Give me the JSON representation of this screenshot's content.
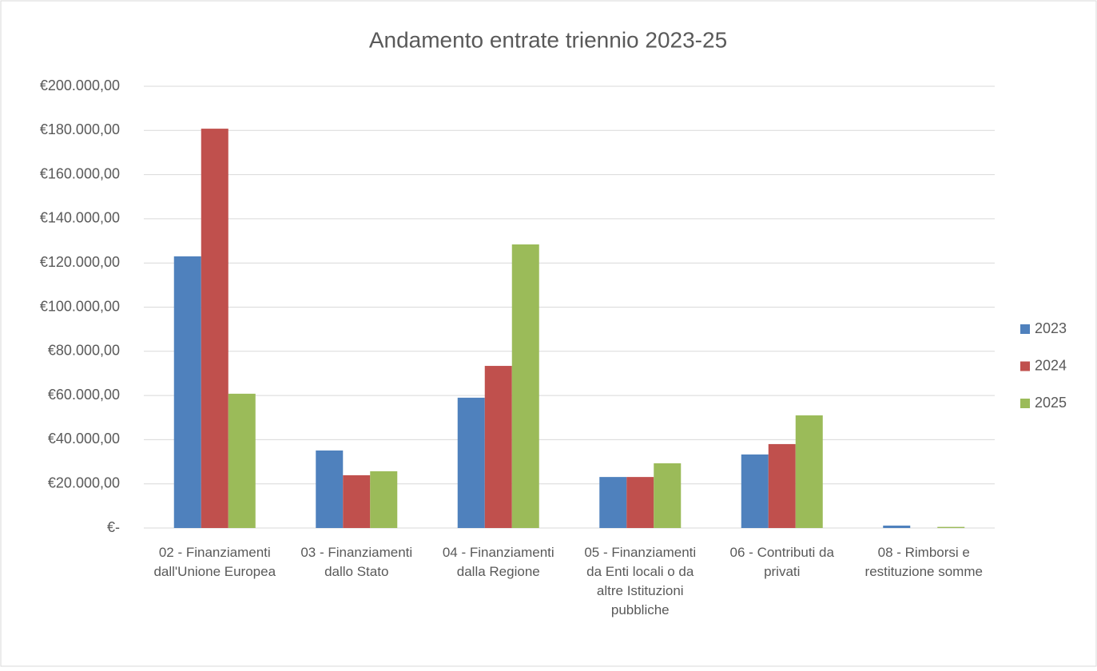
{
  "chart_data": {
    "type": "bar",
    "title": "Andamento entrate triennio 2023-25",
    "categories": [
      "02 - Finanziamenti dall'Unione Europea",
      "03 - Finanziamenti dallo Stato",
      "04 - Finanziamenti dalla Regione",
      "05 - Finanziamenti da Enti locali o da altre Istituzioni pubbliche",
      "06 - Contributi da privati",
      "08 - Rimborsi e restituzione somme"
    ],
    "series": [
      {
        "name": "2023",
        "color": "#4f81bd",
        "values": [
          123000,
          35100,
          59000,
          23100,
          33300,
          1100
        ]
      },
      {
        "name": "2024",
        "color": "#c0504d",
        "values": [
          180800,
          23900,
          73400,
          23100,
          38000,
          0
        ]
      },
      {
        "name": "2025",
        "color": "#9bbb59",
        "values": [
          60800,
          25700,
          128400,
          29300,
          51000,
          500
        ]
      }
    ],
    "ylim": [
      0,
      200000
    ],
    "yticks": [
      {
        "value": 0,
        "label": "€-"
      },
      {
        "value": 20000,
        "label": "€20.000,00"
      },
      {
        "value": 40000,
        "label": "€40.000,00"
      },
      {
        "value": 60000,
        "label": "€60.000,00"
      },
      {
        "value": 80000,
        "label": "€80.000,00"
      },
      {
        "value": 100000,
        "label": "€100.000,00"
      },
      {
        "value": 120000,
        "label": "€120.000,00"
      },
      {
        "value": 140000,
        "label": "€140.000,00"
      },
      {
        "value": 160000,
        "label": "€160.000,00"
      },
      {
        "value": 180000,
        "label": "€180.000,00"
      },
      {
        "value": 200000,
        "label": "€200.000,00"
      }
    ],
    "grid": true,
    "legend": "right"
  }
}
